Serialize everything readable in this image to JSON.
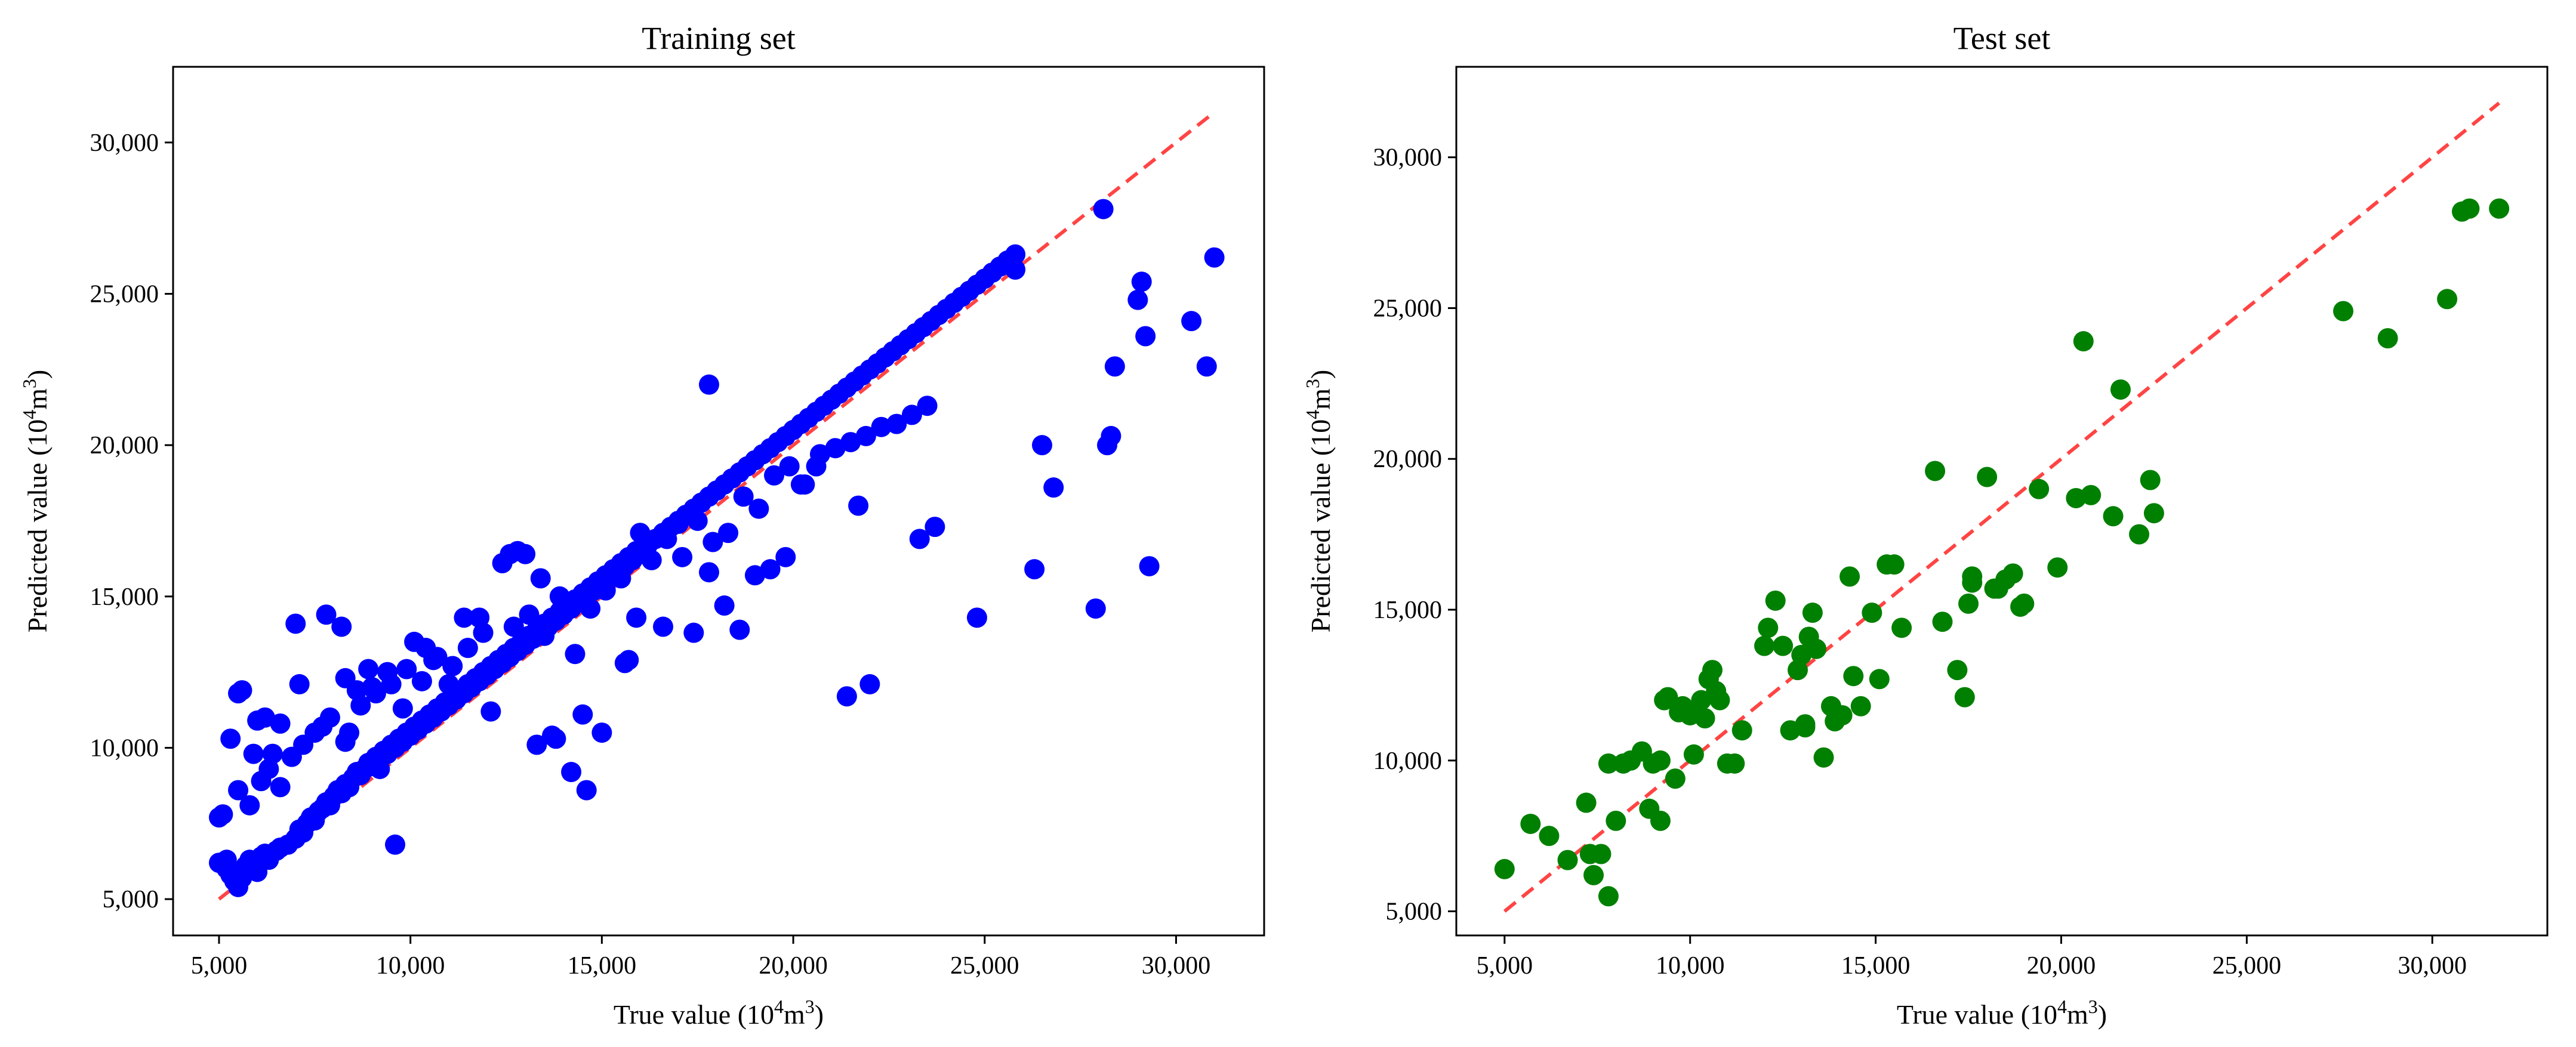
{
  "chart_data": [
    {
      "type": "scatter",
      "title": "Training set",
      "xlabel": "True value (10⁴m³)",
      "ylabel": "Predicted value (10⁴m³)",
      "xlim": [
        3800,
        32300
      ],
      "ylim": [
        3800,
        32500
      ],
      "xticks": [
        5000,
        10000,
        15000,
        20000,
        25000,
        30000
      ],
      "xtick_labels": [
        "5,000",
        "10,000",
        "15,000",
        "20,000",
        "25,000",
        "30,000"
      ],
      "yticks": [
        5000,
        10000,
        15000,
        20000,
        25000,
        30000
      ],
      "ytick_labels": [
        "5,000",
        "10,000",
        "15,000",
        "20,000",
        "25,000",
        "30,000"
      ],
      "point_color": "#0000ff",
      "reference_line": {
        "x": [
          5000,
          31000
        ],
        "y": [
          5000,
          31000
        ],
        "color": "#ff4444",
        "style": "dashed"
      },
      "grid": false,
      "series": [
        {
          "x": [
            5000,
            5200,
            5300,
            5400,
            5500,
            5600,
            5700,
            5800,
            6000,
            6100,
            6200,
            6300,
            6500,
            6600,
            6800,
            7000,
            7100,
            7200,
            7300,
            7400,
            7500,
            7600,
            7700,
            7800,
            7900,
            8000,
            8100,
            8200,
            8300,
            8400,
            8500,
            8600,
            8700,
            8800,
            8900,
            9000,
            9100,
            9200,
            9300,
            9400,
            9500,
            9600,
            9700,
            9800,
            9900,
            10000,
            10100,
            10200,
            10300,
            10400,
            10500,
            10600,
            10700,
            10800,
            10900,
            11000,
            11100,
            11200,
            11300,
            11400,
            11500,
            11600,
            11700,
            11800,
            11900,
            12000,
            12100,
            12200,
            12300,
            12400,
            12500,
            12600,
            12700,
            12800,
            12900,
            13000,
            13100,
            13200,
            13300,
            13400,
            13500,
            13600,
            13700,
            13800,
            13900,
            14000,
            14100,
            14200,
            14300,
            14400,
            14500,
            14600,
            14700,
            14800,
            14900,
            15000,
            15100,
            15200,
            15300,
            15400,
            15500,
            15600,
            15700,
            15800,
            15900,
            16000,
            16200,
            16400,
            16600,
            16800,
            17000,
            17200,
            17400,
            17600,
            17800,
            18000,
            18200,
            18400,
            18600,
            18800,
            19000,
            19200,
            19400,
            19600,
            19800,
            20000,
            20200,
            20400,
            20600,
            20800,
            21000,
            21200,
            21400,
            21600,
            21800,
            22000,
            22200,
            22400,
            22600,
            22800,
            23000,
            23200,
            23400,
            23600,
            23800,
            24000,
            24200,
            24400,
            24600,
            24800,
            25000,
            25200,
            25400,
            25600,
            25800,
            5100,
            5500,
            5800,
            6100,
            6300,
            6600,
            6900,
            7200,
            7500,
            7900,
            8300,
            8700,
            9100,
            9500,
            9900,
            10300,
            10700,
            11100,
            11500,
            11900,
            12300,
            12700,
            13100,
            13500,
            13900,
            14300,
            14700,
            15100,
            15500,
            15900,
            16300,
            16700,
            17100,
            17500,
            17900,
            18300,
            18700,
            19100,
            19500,
            19900,
            20300,
            20700,
            21100,
            21500,
            21900,
            22300,
            22700,
            23100,
            23500,
            5000,
            5300,
            5500,
            5900,
            6200,
            6600,
            7000,
            7800,
            8200,
            8300,
            8600,
            9000,
            9400,
            9800,
            10400,
            11000,
            11800,
            12400,
            12800,
            13000,
            13400,
            13800,
            14200,
            14600,
            15000,
            15600,
            16000,
            16600,
            17000,
            17400,
            17800,
            18200,
            18600,
            19000,
            19400,
            19800,
            20200,
            20600,
            21400,
            21700,
            22000,
            23300,
            23700,
            24800,
            26300,
            26500,
            26800,
            27900,
            28200,
            28300,
            28400,
            29000,
            29100,
            29200,
            29300,
            30400,
            30800,
            31000,
            28100,
            25800,
            5200,
            5600,
            6000,
            6400,
            7100,
            7700,
            8400,
            8900,
            9200,
            9600,
            10100,
            10600,
            11400,
            12100,
            12600,
            13300,
            13700,
            14500,
            15700,
            17800
          ],
          "y": [
            6200,
            6000,
            5800,
            5600,
            5400,
            5700,
            6100,
            6300,
            5900,
            6400,
            6500,
            6300,
            6600,
            6700,
            6800,
            7000,
            7300,
            7200,
            7500,
            7700,
            7600,
            7900,
            8000,
            8200,
            8100,
            8400,
            8600,
            8500,
            8800,
            8700,
            9000,
            9200,
            9100,
            9300,
            9500,
            9400,
            9700,
            9600,
            9900,
            9800,
            10100,
            10000,
            10300,
            10200,
            10500,
            10400,
            10700,
            10600,
            10900,
            10800,
            11100,
            11000,
            11300,
            11200,
            11500,
            11400,
            11700,
            11600,
            11900,
            11800,
            12100,
            12000,
            12300,
            12200,
            12500,
            12400,
            12700,
            12600,
            12900,
            12800,
            13100,
            13000,
            13300,
            13200,
            13500,
            13400,
            13700,
            13600,
            13900,
            13800,
            14100,
            14000,
            14300,
            14200,
            14500,
            14400,
            14700,
            14600,
            14900,
            14800,
            15100,
            15000,
            15300,
            15200,
            15500,
            15400,
            15700,
            15600,
            15900,
            15800,
            16100,
            16000,
            16300,
            16200,
            16500,
            16400,
            16700,
            16900,
            17100,
            17300,
            17500,
            17700,
            17900,
            18100,
            18300,
            18500,
            18700,
            18900,
            19100,
            19300,
            19500,
            19700,
            19900,
            20100,
            20300,
            20500,
            20700,
            20900,
            21100,
            21300,
            21500,
            21700,
            21900,
            22100,
            22300,
            22500,
            22700,
            22900,
            23100,
            23300,
            23500,
            23700,
            23900,
            24100,
            24300,
            24500,
            24700,
            24900,
            25100,
            25300,
            25500,
            25700,
            25900,
            26100,
            26300,
            7800,
            8600,
            8100,
            8900,
            9300,
            8700,
            9700,
            10100,
            10500,
            11000,
            10200,
            11400,
            11800,
            12100,
            12600,
            12200,
            13000,
            12700,
            13300,
            13800,
            12900,
            14000,
            14400,
            13700,
            15000,
            13100,
            14600,
            15200,
            15600,
            14300,
            16200,
            16900,
            16300,
            17500,
            16800,
            17100,
            18300,
            17900,
            19000,
            19300,
            18700,
            19700,
            19900,
            20100,
            20300,
            20600,
            20700,
            21000,
            21300,
            7700,
            10300,
            11800,
            9800,
            11000,
            10800,
            14100,
            14400,
            14000,
            12300,
            11900,
            12000,
            12500,
            11300,
            13300,
            12100,
            14300,
            16100,
            16500,
            16400,
            15600,
            10300,
            9200,
            8600,
            10500,
            12800,
            17100,
            14000,
            17400,
            13800,
            15800,
            14700,
            13900,
            15700,
            15900,
            16300,
            18700,
            19300,
            11700,
            18000,
            12100,
            16900,
            17300,
            14300,
            15900,
            20000,
            18600,
            14600,
            20000,
            20300,
            22600,
            24800,
            25400,
            23600,
            16000,
            24100,
            22600,
            26200,
            27800,
            25800,
            6300,
            11900,
            10900,
            9800,
            12100,
            10700,
            10500,
            12600,
            9300,
            6800,
            13500,
            12900,
            14300,
            11200,
            16400,
            10100,
            10400,
            11100,
            12900,
            22000
          ]
        }
      ]
    },
    {
      "type": "scatter",
      "title": "Test set",
      "xlabel": "True value (10⁴m³)",
      "ylabel": "Predicted value (10⁴m³)",
      "xlim": [
        3700,
        33100
      ],
      "ylim": [
        4200,
        33000
      ],
      "xticks": [
        5000,
        10000,
        15000,
        20000,
        25000,
        30000
      ],
      "xtick_labels": [
        "5,000",
        "10,000",
        "15,000",
        "20,000",
        "25,000",
        "30,000"
      ],
      "yticks": [
        5000,
        10000,
        15000,
        20000,
        25000,
        30000
      ],
      "ytick_labels": [
        "5,000",
        "10,000",
        "15,000",
        "20,000",
        "25,000",
        "30,000"
      ],
      "point_color": "#008000",
      "reference_line": {
        "x": [
          5000,
          31800
        ],
        "y": [
          5000,
          31800
        ],
        "color": "#ff4444",
        "style": "dashed"
      },
      "grid": false,
      "series": [
        {
          "x": [
            5000,
            5700,
            6200,
            6700,
            7200,
            7300,
            7400,
            7600,
            7800,
            8000,
            8200,
            8400,
            8700,
            8900,
            9000,
            9200,
            9300,
            9400,
            9600,
            9700,
            9800,
            10000,
            10100,
            10300,
            10400,
            10500,
            10600,
            10700,
            10800,
            11000,
            11200,
            12000,
            12100,
            12300,
            12500,
            12700,
            12900,
            13000,
            13100,
            13200,
            13300,
            13400,
            13600,
            13800,
            14100,
            14300,
            14600,
            14900,
            15100,
            15300,
            15500,
            15700,
            16600,
            16800,
            17200,
            17400,
            17500,
            17600,
            18000,
            18200,
            18300,
            18500,
            18700,
            18900,
            19000,
            19400,
            19900,
            20400,
            20600,
            20800,
            21400,
            21600,
            22100,
            22400,
            22500,
            27600,
            28800,
            30400,
            30800,
            31000,
            31800,
            7800,
            9200,
            10500,
            11400,
            13100,
            13900,
            14400,
            17600
          ],
          "y": [
            6400,
            7900,
            7500,
            6700,
            8600,
            6900,
            6200,
            6900,
            5500,
            8000,
            9900,
            10000,
            10300,
            8400,
            9900,
            10000,
            12000,
            12100,
            9400,
            11600,
            11800,
            11500,
            10200,
            12000,
            11400,
            12700,
            13000,
            12300,
            12000,
            9900,
            9900,
            13800,
            14400,
            15300,
            13800,
            11000,
            13000,
            13500,
            11100,
            14100,
            14900,
            13700,
            10100,
            11800,
            11500,
            16100,
            11800,
            14900,
            12700,
            16500,
            16500,
            14400,
            19600,
            14600,
            13000,
            12100,
            15200,
            15900,
            19400,
            15700,
            15700,
            16000,
            16200,
            15100,
            15200,
            19000,
            16400,
            18700,
            23900,
            18800,
            18100,
            22300,
            17500,
            19300,
            18200,
            24900,
            24000,
            25300,
            28200,
            28300,
            28300,
            9900,
            8000,
            12700,
            11000,
            11200,
            11300,
            12800,
            16100
          ]
        }
      ]
    }
  ]
}
